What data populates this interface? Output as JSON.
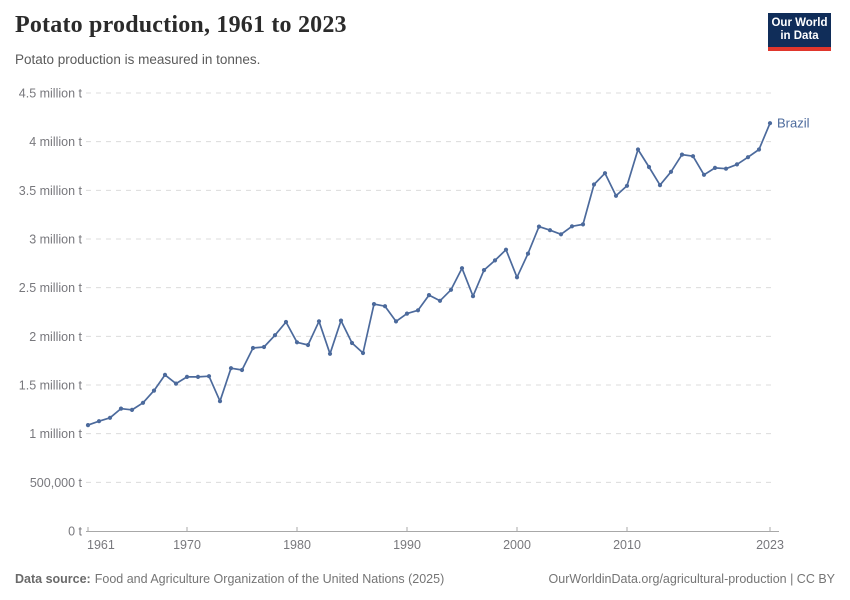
{
  "header": {
    "title": "Potato production, 1961 to 2023",
    "subtitle": "Potato production is measured in tonnes.",
    "logo": {
      "line1": "Our World",
      "line2": "in Data"
    }
  },
  "footer": {
    "datasource_label": "Data source:",
    "datasource_text": "Food and Agriculture Organization of the United Nations (2025)",
    "credit": "OurWorldinData.org/agricultural-production | CC BY"
  },
  "colors": {
    "series": "#4C6A9C",
    "grid": "#dcdcdc",
    "axis": "#a8a8a8",
    "tick_text": "#78787d",
    "title_text": "#2b2b2b",
    "subtitle_text": "#5b5b5b",
    "footer_text": "#757575",
    "logo_bg": "#102d59",
    "logo_red": "#e0362c"
  },
  "chart_data": {
    "type": "line",
    "title": "Potato production, 1961 to 2023",
    "subtitle": "Potato production is measured in tonnes.",
    "unit": "tonnes",
    "series_label": "Brazil",
    "grid": "horizontal-dashed",
    "legend_position": "end-of-line-label",
    "xlim": [
      1961,
      2023
    ],
    "ylim": [
      0,
      4500000
    ],
    "x": [
      1961,
      1962,
      1963,
      1964,
      1965,
      1966,
      1967,
      1968,
      1969,
      1970,
      1971,
      1972,
      1973,
      1974,
      1975,
      1976,
      1977,
      1978,
      1979,
      1980,
      1981,
      1982,
      1983,
      1984,
      1985,
      1986,
      1987,
      1988,
      1989,
      1990,
      1991,
      1992,
      1993,
      1994,
      1995,
      1996,
      1997,
      1998,
      1999,
      2000,
      2001,
      2002,
      2003,
      2004,
      2005,
      2006,
      2007,
      2008,
      2009,
      2010,
      2011,
      2012,
      2013,
      2014,
      2015,
      2016,
      2017,
      2018,
      2019,
      2020,
      2021,
      2022,
      2023
    ],
    "series": [
      {
        "name": "Brazil",
        "values": [
          1088000,
          1128000,
          1163000,
          1258000,
          1244000,
          1317000,
          1442000,
          1604000,
          1514000,
          1583000,
          1583000,
          1590000,
          1334000,
          1673000,
          1654000,
          1880000,
          1890000,
          2012000,
          2147000,
          1939000,
          1911000,
          2154000,
          1821000,
          2162000,
          1931000,
          1829000,
          2331000,
          2310000,
          2153000,
          2234000,
          2267000,
          2424000,
          2365000,
          2478000,
          2700000,
          2412000,
          2680000,
          2780000,
          2890000,
          2607000,
          2850000,
          3127000,
          3090000,
          3048000,
          3130000,
          3150000,
          3560000,
          3676000,
          3444000,
          3547000,
          3920000,
          3740000,
          3554000,
          3690000,
          3867000,
          3851000,
          3660000,
          3730000,
          3722000,
          3766000,
          3840000,
          3920000,
          4190000
        ]
      }
    ],
    "y_ticks": [
      {
        "value": 0,
        "label": "0 t"
      },
      {
        "value": 500000,
        "label": "500,000 t"
      },
      {
        "value": 1000000,
        "label": "1 million t"
      },
      {
        "value": 1500000,
        "label": "1.5 million t"
      },
      {
        "value": 2000000,
        "label": "2 million t"
      },
      {
        "value": 2500000,
        "label": "2.5 million t"
      },
      {
        "value": 3000000,
        "label": "3 million t"
      },
      {
        "value": 3500000,
        "label": "3.5 million t"
      },
      {
        "value": 4000000,
        "label": "4 million t"
      },
      {
        "value": 4500000,
        "label": "4.5 million t"
      }
    ],
    "x_ticks": [
      {
        "value": 1961,
        "label": "1961"
      },
      {
        "value": 1970,
        "label": "1970"
      },
      {
        "value": 1980,
        "label": "1980"
      },
      {
        "value": 1990,
        "label": "1990"
      },
      {
        "value": 2000,
        "label": "2000"
      },
      {
        "value": 2010,
        "label": "2010"
      },
      {
        "value": 2023,
        "label": "2023"
      }
    ]
  }
}
